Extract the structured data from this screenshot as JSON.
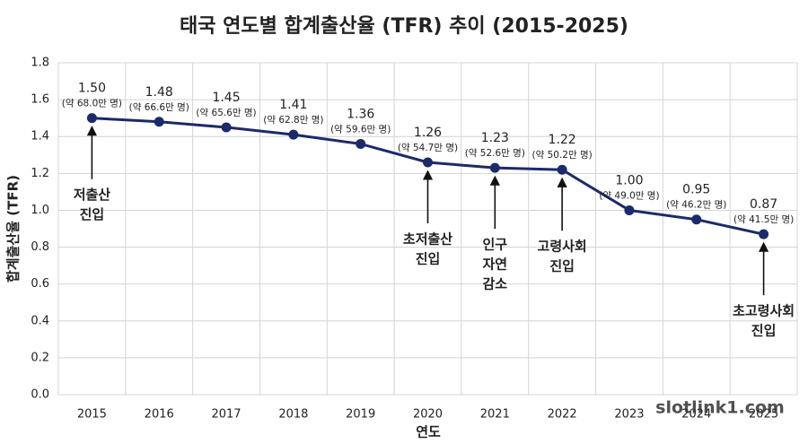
{
  "chart_data": {
    "type": "line",
    "title": "태국 연도별 합계출산율 (TFR) 추이 (2015-2025)",
    "x_label": "연도",
    "y_label": "합계출산율 (TFR)",
    "categories": [
      "2015",
      "2016",
      "2017",
      "2018",
      "2019",
      "2020",
      "2021",
      "2022",
      "2023",
      "2024",
      "2025"
    ],
    "series": [
      {
        "name": "합계출산율 (TFR)",
        "color": "#1b2a6b",
        "values": [
          1.5,
          1.48,
          1.45,
          1.41,
          1.36,
          1.26,
          1.23,
          1.22,
          1.0,
          0.95,
          0.87
        ],
        "value_labels": [
          "1.50",
          "1.48",
          "1.45",
          "1.41",
          "1.36",
          "1.26",
          "1.23",
          "1.22",
          "1.00",
          "0.95",
          "0.87"
        ],
        "births_labels": [
          "(약 68.0만 명)",
          "(약 66.6만 명)",
          "(약 65.6만 명)",
          "(약 62.8만 명)",
          "(약 59.6만 명)",
          "(약 54.7만 명)",
          "(약 52.6만 명)",
          "(약 50.2만 명)",
          "(약 49.0만 명)",
          "(약 46.2만 명)",
          "(약 41.5만 명)"
        ]
      }
    ],
    "annotations": [
      [
        "저출산",
        "진입"
      ],
      null,
      null,
      null,
      null,
      [
        "초저출산",
        "진입"
      ],
      [
        "인구",
        "자연",
        "감소"
      ],
      [
        "고령사회",
        "진입"
      ],
      null,
      null,
      [
        "초고령사회",
        "진입"
      ]
    ],
    "ylim": [
      0,
      1.8
    ],
    "yticks": [
      {
        "value": 0,
        "label": "0.0"
      },
      0.2,
      0.4,
      0.6,
      0.8,
      {
        "value": 1,
        "label": "1.0"
      },
      1.2,
      1.4,
      1.6,
      1.8
    ],
    "grid": true,
    "watermark": "slotlink1.com"
  }
}
